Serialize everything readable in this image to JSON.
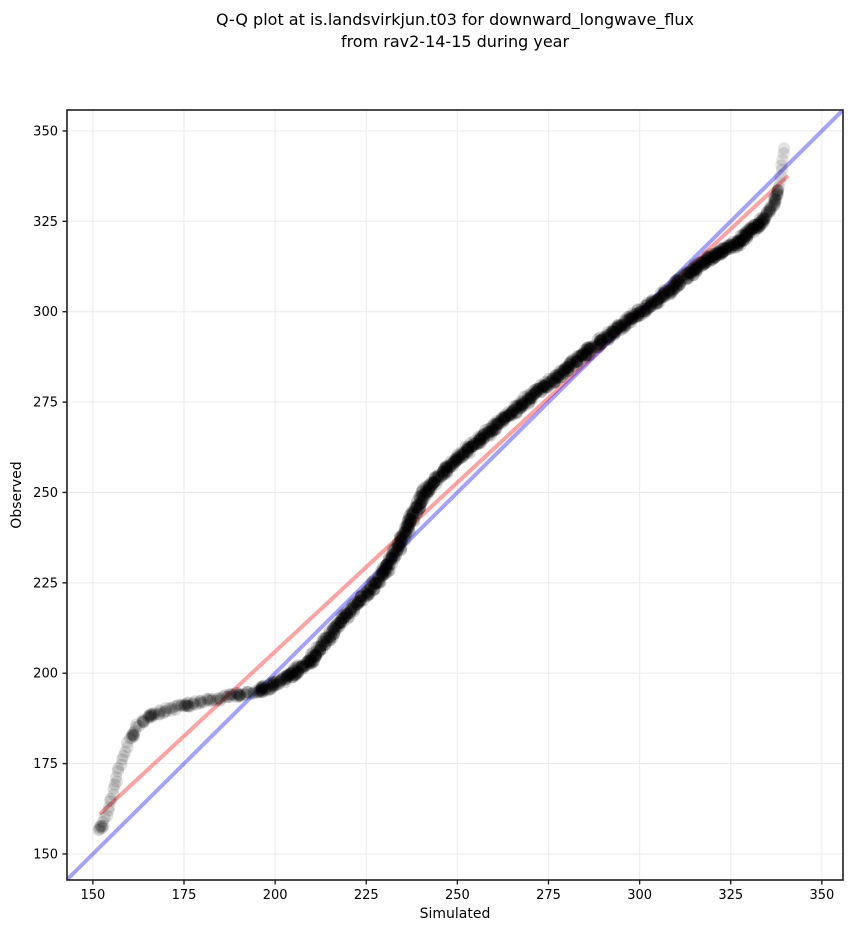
{
  "title": {
    "line1": "Q-Q plot at is.landsvirkjun.t03 for downward_longwave_flux",
    "line2": "from rav2-14-15 during year"
  },
  "style": {
    "background": "#ffffff",
    "text_color": "#000000",
    "grid_color": "#ececec",
    "spine_color": "#1f1f1f",
    "identity_color": "#0000ff",
    "fit_color": "#ff0000",
    "identity_alpha": 0.36,
    "fit_alpha": 0.36,
    "point_color": "#000000"
  },
  "chart_data": {
    "type": "scatter",
    "subtype": "qq-plot",
    "title": "Q-Q plot at is.landsvirkjun.t03 for downward_longwave_flux from rav2-14-15 during year",
    "xlabel": "Simulated",
    "ylabel": "Observed",
    "xlim": [
      142.9,
      355.8
    ],
    "ylim": [
      142.8,
      355.8
    ],
    "x_ticks": [
      150,
      175,
      200,
      225,
      250,
      275,
      300,
      325,
      350
    ],
    "y_ticks": [
      150,
      175,
      200,
      225,
      250,
      275,
      300,
      325,
      350
    ],
    "grid": true,
    "legend": "none",
    "identity_line": {
      "name": "identity y = x",
      "x": [
        142.9,
        355.8
      ],
      "y": [
        142.9,
        355.8
      ]
    },
    "fit_line": {
      "name": "linear fit",
      "x": [
        152.2,
        340.4
      ],
      "y": [
        161.3,
        337.3
      ]
    },
    "qq_curve": [
      [
        151.5,
        155.8
      ],
      [
        152.1,
        157.0
      ],
      [
        152.7,
        158.3
      ],
      [
        153.3,
        159.8
      ],
      [
        153.9,
        161.6
      ],
      [
        154.6,
        163.8
      ],
      [
        155.3,
        166.4
      ],
      [
        156.0,
        169.2
      ],
      [
        156.8,
        172.2
      ],
      [
        157.7,
        175.3
      ],
      [
        158.7,
        178.3
      ],
      [
        159.8,
        181.0
      ],
      [
        161.0,
        183.4
      ],
      [
        162.4,
        185.4
      ],
      [
        164.0,
        187.0
      ],
      [
        166.0,
        188.3
      ],
      [
        168.5,
        189.3
      ],
      [
        171.5,
        190.2
      ],
      [
        175.0,
        191.1
      ],
      [
        179.0,
        192.0
      ],
      [
        183.0,
        192.8
      ],
      [
        187.0,
        193.5
      ],
      [
        191.0,
        194.2
      ],
      [
        195.0,
        195.0
      ],
      [
        199.0,
        196.6
      ],
      [
        202.0,
        198.0
      ],
      [
        205.0,
        200.0
      ],
      [
        208.0,
        202.2
      ],
      [
        211.0,
        205.0
      ],
      [
        214.0,
        209.0
      ],
      [
        217.0,
        213.2
      ],
      [
        220.0,
        216.8
      ],
      [
        223.0,
        219.8
      ],
      [
        226.0,
        223.0
      ],
      [
        229.0,
        226.8
      ],
      [
        232.0,
        231.4
      ],
      [
        235.0,
        237.4
      ],
      [
        238.0,
        244.0
      ],
      [
        241.0,
        250.0
      ],
      [
        245.0,
        254.6
      ],
      [
        250.0,
        259.2
      ],
      [
        255.0,
        263.7
      ],
      [
        260.0,
        268.0
      ],
      [
        265.0,
        272.2
      ],
      [
        270.0,
        276.2
      ],
      [
        275.0,
        280.2
      ],
      [
        280.0,
        284.3
      ],
      [
        285.0,
        288.3
      ],
      [
        290.0,
        292.3
      ],
      [
        295.0,
        296.1
      ],
      [
        300.0,
        299.8
      ],
      [
        305.0,
        303.4
      ],
      [
        310.0,
        307.2
      ],
      [
        315.0,
        311.9
      ],
      [
        319.0,
        314.7
      ],
      [
        323.0,
        317.0
      ],
      [
        327.0,
        319.1
      ],
      [
        331.0,
        322.9
      ],
      [
        334.0,
        325.4
      ],
      [
        336.0,
        328.3
      ],
      [
        337.3,
        331.0
      ],
      [
        338.0,
        333.8
      ],
      [
        338.5,
        336.5
      ],
      [
        339.0,
        339.5
      ],
      [
        339.3,
        342.5
      ],
      [
        339.6,
        346.0
      ]
    ],
    "density_segments": [
      {
        "from": 0,
        "to": 13,
        "count": 26,
        "alpha": 0.12,
        "jitter": 1.2
      },
      {
        "from": 13,
        "to": 23,
        "count": 78,
        "alpha": 0.13,
        "jitter": 2.2
      },
      {
        "from": 23,
        "to": 33,
        "count": 220,
        "alpha": 0.16,
        "jitter": 3.0
      },
      {
        "from": 33,
        "to": 53,
        "count": 780,
        "alpha": 0.16,
        "jitter": 3.2
      },
      {
        "from": 53,
        "to": 58,
        "count": 180,
        "alpha": 0.16,
        "jitter": 2.8
      },
      {
        "from": 58,
        "to": 61,
        "count": 36,
        "alpha": 0.13,
        "jitter": 1.6
      },
      {
        "from": 61,
        "to": 65,
        "count": 8,
        "alpha": 0.11,
        "jitter": 0.8
      }
    ],
    "clusters": [
      {
        "x": 152.5,
        "y": 157.5,
        "count": 5
      },
      {
        "x": 160.8,
        "y": 182.8,
        "count": 6
      },
      {
        "x": 166.0,
        "y": 188.2,
        "count": 5
      },
      {
        "x": 176.0,
        "y": 191.3,
        "count": 5
      },
      {
        "x": 190.0,
        "y": 194.0,
        "count": 6
      },
      {
        "x": 196.3,
        "y": 195.3,
        "count": 5
      },
      {
        "x": 205.0,
        "y": 200.0,
        "count": 8
      },
      {
        "x": 210.0,
        "y": 203.5,
        "count": 8
      }
    ],
    "marker": {
      "radius": 6.1,
      "cluster_alpha": 0.13,
      "cluster_jitter": 2.5
    }
  }
}
